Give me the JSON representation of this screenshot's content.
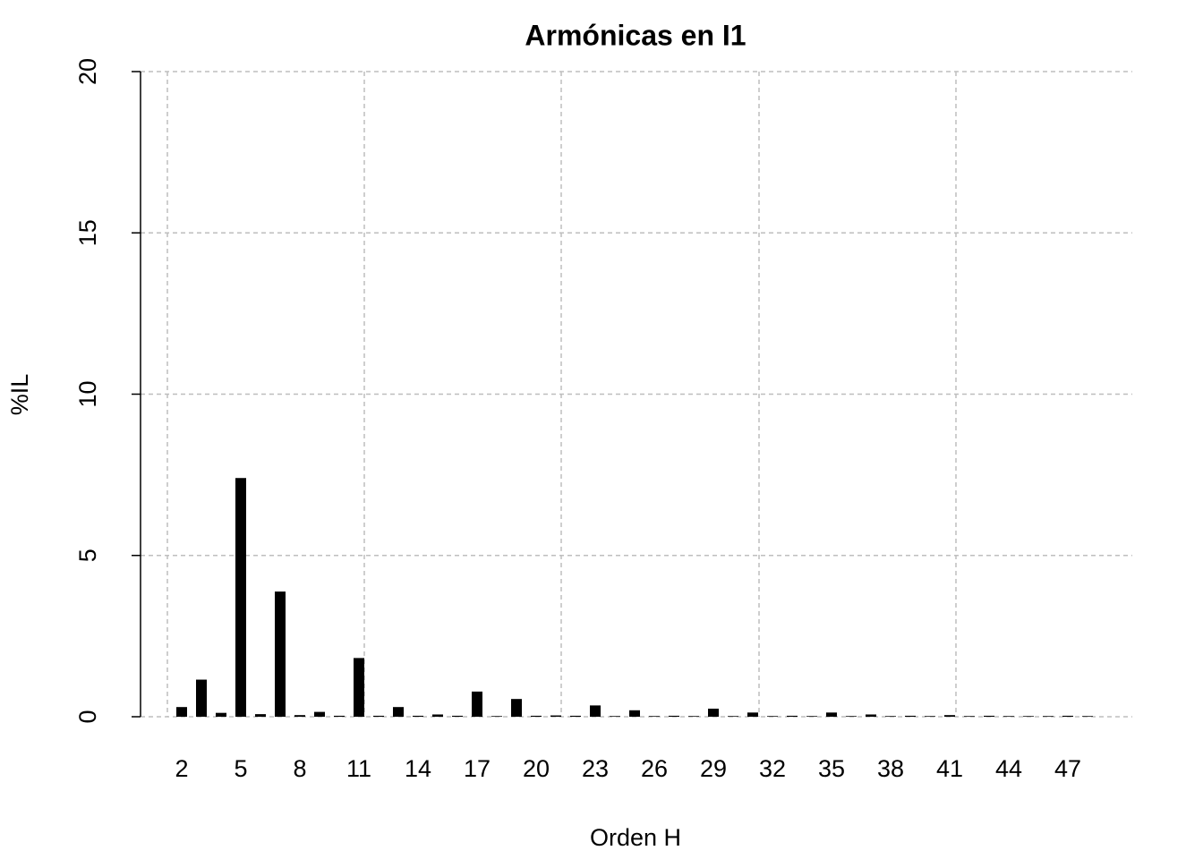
{
  "chart_data": {
    "type": "bar",
    "title": "Armónicas en I1",
    "xlabel": "Orden H",
    "ylabel": "%IL",
    "categories": [
      "2",
      null,
      null,
      "5",
      null,
      null,
      "8",
      null,
      null,
      "11",
      null,
      null,
      "14",
      null,
      null,
      "17",
      null,
      null,
      "20",
      null,
      null,
      "23",
      null,
      null,
      "26",
      null,
      null,
      "29",
      null,
      null,
      "32",
      null,
      null,
      "35",
      null,
      null,
      "38",
      null,
      null,
      "41",
      null,
      null,
      "44",
      null,
      null,
      "47",
      null
    ],
    "values": [
      0.3,
      1.15,
      0.12,
      7.4,
      0.08,
      3.88,
      0.05,
      0.15,
      0.03,
      1.82,
      0.03,
      0.3,
      0.03,
      0.07,
      0.03,
      0.78,
      0.02,
      0.55,
      0.03,
      0.04,
      0.03,
      0.35,
      0.02,
      0.2,
      0.02,
      0.03,
      0.02,
      0.25,
      0.02,
      0.13,
      0.02,
      0.03,
      0.02,
      0.13,
      0.02,
      0.07,
      0.02,
      0.03,
      0.02,
      0.05,
      0.02,
      0.03,
      0.02,
      0.02,
      0.02,
      0.03,
      0.02
    ],
    "color": "#000000",
    "ylim": [
      0,
      20
    ],
    "yticks": [
      0,
      5,
      10,
      15,
      20
    ],
    "grid": true
  }
}
